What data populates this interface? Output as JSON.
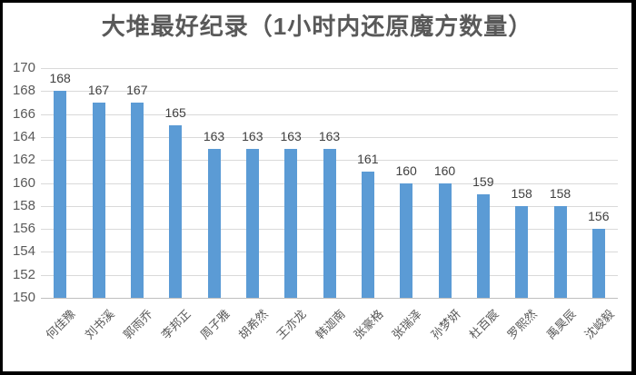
{
  "chart_data": {
    "type": "bar",
    "title": "大堆最好纪录（1小时内还原魔方数量）",
    "categories": [
      "何佳豫",
      "刘书溪",
      "郭雨乔",
      "李邦正",
      "周子雅",
      "胡希然",
      "王亦龙",
      "韩迦南",
      "张豪格",
      "张瑞泽",
      "孙梦妍",
      "杜百宸",
      "罗熙然",
      "禹昊辰",
      "沈峻毅"
    ],
    "values": [
      168,
      167,
      167,
      165,
      163,
      163,
      163,
      163,
      161,
      160,
      160,
      159,
      158,
      158,
      156
    ],
    "xlabel": "",
    "ylabel": "",
    "ylim": [
      150,
      170
    ],
    "yticks": [
      "150",
      "152",
      "154",
      "156",
      "158",
      "160",
      "162",
      "164",
      "166",
      "168",
      "170"
    ],
    "grid": true,
    "legend_position": "none",
    "data_labels_shown": true,
    "colors": {
      "bar": "#5b9bd5",
      "gridline": "#d9d9d9",
      "axis_line": "#bfbfbf",
      "title_text": "#595959",
      "axis_tick_text": "#595959",
      "value_label_text": "#404040",
      "frame_border": "#000000",
      "background": "#ffffff"
    }
  }
}
